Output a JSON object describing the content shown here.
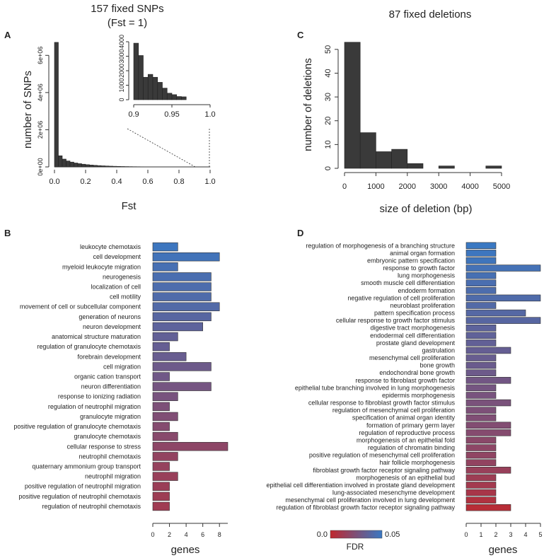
{
  "figure_title_a": "157 fixed SNPs",
  "figure_subtitle_a": "(Fst = 1)",
  "figure_title_c": "87 fixed deletions",
  "legend": {
    "label": "FDR",
    "min_label": "0.0",
    "max_label": "0.05",
    "color_low": "#c0282e",
    "color_high": "#3a78c2"
  },
  "chart_data": [
    {
      "panel": "A",
      "type": "bar",
      "subtype": "histogram",
      "xlabel": "Fst",
      "ylabel": "number of SNPs",
      "xlim": [
        0,
        1
      ],
      "ylim": [
        0,
        7000000
      ],
      "xticks": [
        "0.0",
        "0.2",
        "0.4",
        "0.6",
        "0.8",
        "1.0"
      ],
      "yticks": [
        "0e+00",
        "2e+06",
        "4e+06",
        "6e+06"
      ],
      "bin_width": 0.025,
      "values": [
        6700000,
        600000,
        420000,
        320000,
        260000,
        210000,
        175000,
        145000,
        120000,
        100000,
        85000,
        70000,
        58000,
        48000,
        40000,
        33000,
        27000,
        22000,
        18000,
        15000,
        12000,
        10000,
        8000,
        6000,
        5000,
        4000,
        3500,
        3000,
        2500,
        2000,
        1800,
        1500,
        1200,
        1000,
        900,
        800,
        600,
        500,
        400,
        300
      ],
      "inset": {
        "type": "bar",
        "subtype": "histogram",
        "xlim": [
          0.9,
          1.0
        ],
        "ylim": [
          0,
          4000
        ],
        "xticks": [
          "0.9",
          "0.95",
          "1.0"
        ],
        "yticks": [
          "0",
          "1000",
          "2000",
          "3000",
          "4000"
        ],
        "bin_width": 0.00625,
        "values": [
          3900,
          3050,
          1550,
          1750,
          1550,
          1200,
          800,
          450,
          350,
          220,
          200
        ]
      }
    },
    {
      "panel": "C",
      "type": "bar",
      "subtype": "histogram",
      "xlabel": "size of deletion (bp)",
      "ylabel": "number of deletions",
      "xlim": [
        0,
        5000
      ],
      "ylim": [
        0,
        55
      ],
      "xticks": [
        "0",
        "1000",
        "2000",
        "3000",
        "4000",
        "5000"
      ],
      "yticks": [
        "0",
        "10",
        "20",
        "30",
        "40",
        "50"
      ],
      "bin_edges": [
        0,
        500,
        1000,
        1500,
        2000,
        2500,
        3000,
        3500,
        4000,
        4500,
        5000
      ],
      "values": [
        53,
        15,
        7,
        8,
        2,
        0,
        1,
        0,
        0,
        1
      ]
    },
    {
      "panel": "B",
      "type": "bar",
      "orientation": "horizontal",
      "xlabel": "genes",
      "xlim": [
        0,
        9
      ],
      "xticks": [
        "0",
        "2",
        "4",
        "6",
        "8"
      ],
      "categories": [
        "leukocyte chemotaxis",
        "cell development",
        "myeloid leukocyte migration",
        "neurogenesis",
        "localization of cell",
        "cell motility",
        "movement of cell or subcellular component",
        "generation of neurons",
        "neuron development",
        "anatomical structure maturation",
        "regulation of granulocyte chemotaxis",
        "forebrain development",
        "cell migration",
        "organic cation transport",
        "neuron differentiation",
        "response to ionizing radiation",
        "regulation of neutrophil migration",
        "granulocyte migration",
        "positive regulation of granulocyte chemotaxis",
        "granulocyte chemotaxis",
        "cellular response to stress",
        "neutrophil chemotaxis",
        "quaternary ammonium group transport",
        "neutrophil migration",
        "positive regulation of neutrophil migration",
        "positive regulation of neutrophil chemotaxis",
        "regulation of neutrophil chemotaxis"
      ],
      "values": [
        3,
        8,
        3,
        7,
        7,
        7,
        8,
        7,
        6,
        3,
        2,
        4,
        7,
        2,
        7,
        3,
        2,
        3,
        2,
        3,
        9,
        3,
        2,
        3,
        2,
        2,
        2
      ],
      "fdr": [
        0.049,
        0.047,
        0.045,
        0.044,
        0.043,
        0.042,
        0.041,
        0.039,
        0.037,
        0.035,
        0.034,
        0.033,
        0.031,
        0.03,
        0.028,
        0.027,
        0.025,
        0.024,
        0.022,
        0.021,
        0.019,
        0.017,
        0.016,
        0.015,
        0.014,
        0.013,
        0.012
      ]
    },
    {
      "panel": "D",
      "type": "bar",
      "orientation": "horizontal",
      "xlabel": "genes",
      "xlim": [
        0,
        5
      ],
      "xticks": [
        "0",
        "1",
        "2",
        "3",
        "4",
        "5"
      ],
      "categories": [
        "regulation of morphogenesis of a branching structure",
        "animal organ formation",
        "embryonic pattern specification",
        "response to growth factor",
        "lung morphogenesis",
        "smooth muscle cell differentiation",
        "endoderm formation",
        "negative regulation of cell proliferation",
        "neuroblast proliferation",
        "pattern specification process",
        "cellular response to growth factor stimulus",
        "digestive tract morphogenesis",
        "endodermal cell differentiation",
        "prostate gland development",
        "gastrulation",
        "mesenchymal cell proliferation",
        "bone growth",
        "endochondral bone growth",
        "response to fibroblast growth factor",
        "epithelial tube branching involved in lung morphogenesis",
        "epidermis morphogenesis",
        "cellular response to fibroblast growth factor stimulus",
        "regulation of mesenchymal cell proliferation",
        "specification of animal organ identity",
        "formation of primary germ layer",
        "regulation of reproductive process",
        "morphogenesis of an epithelial fold",
        "regulation of chromatin binding",
        "positive regulation of mesenchymal cell proliferation",
        "hair follicle morphogenesis",
        "fibroblast growth factor receptor signaling pathway",
        "morphogenesis of an epithelial bud",
        "epithelial cell differentiation involved in prostate gland development",
        "lung-associated mesenchyme development",
        "mesenchymal cell proliferation involved in lung development",
        "regulation of fibroblast growth factor receptor signaling pathway"
      ],
      "values": [
        2,
        2,
        2,
        5,
        2,
        2,
        2,
        5,
        2,
        4,
        5,
        2,
        2,
        2,
        3,
        2,
        2,
        2,
        3,
        2,
        2,
        3,
        2,
        2,
        3,
        3,
        2,
        2,
        2,
        2,
        3,
        2,
        2,
        2,
        2,
        3
      ],
      "fdr": [
        0.05,
        0.049,
        0.048,
        0.046,
        0.045,
        0.044,
        0.043,
        0.042,
        0.041,
        0.04,
        0.039,
        0.037,
        0.036,
        0.035,
        0.034,
        0.033,
        0.032,
        0.031,
        0.029,
        0.028,
        0.027,
        0.026,
        0.025,
        0.024,
        0.023,
        0.022,
        0.02,
        0.019,
        0.018,
        0.017,
        0.015,
        0.013,
        0.011,
        0.009,
        0.006,
        0.003
      ]
    }
  ]
}
